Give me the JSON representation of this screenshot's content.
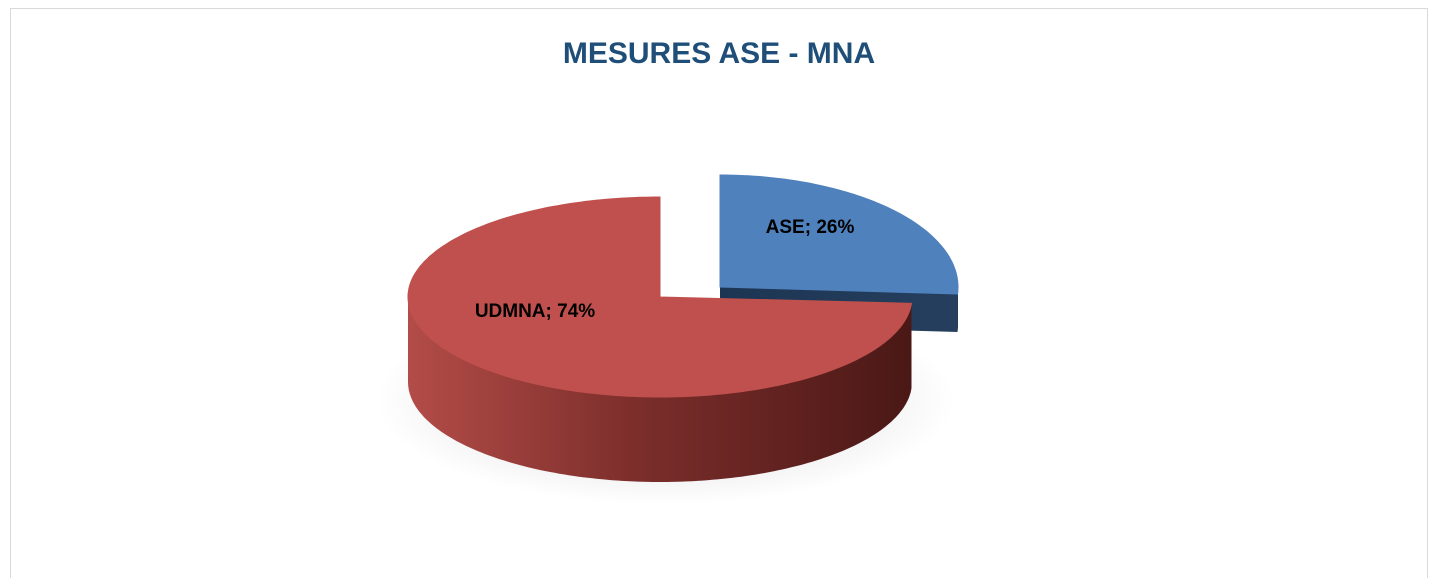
{
  "chart_data": {
    "type": "pie",
    "title": "MESURES ASE - MNA",
    "values": [
      26,
      74
    ],
    "value_labels": [
      "ASE; 26%",
      "UDMNA; 74%"
    ],
    "colors": [
      "#4f81bd",
      "#c0504d"
    ]
  }
}
